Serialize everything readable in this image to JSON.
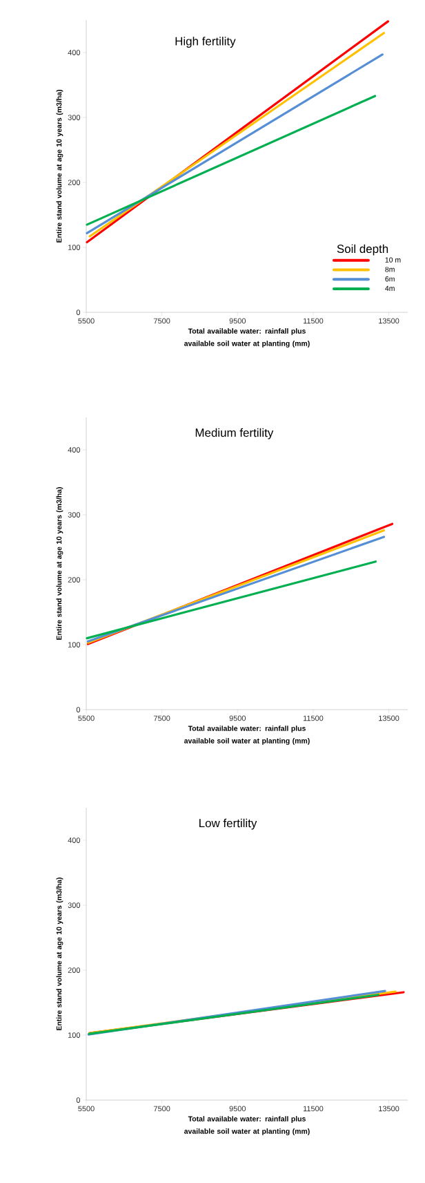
{
  "chart_data": [
    {
      "type": "line",
      "title": "High fertility",
      "xlabel": "Total available water: rainfall plus available soil water at planting (mm)",
      "ylabel": "Entire stand volume at age 10 years (m3/ha)",
      "legend_title": "Soil depth",
      "legend": "bottom right",
      "xlim": [
        5500,
        14000
      ],
      "ylim": [
        0,
        450
      ],
      "xticks": [
        5500,
        7500,
        9500,
        11500,
        13500
      ],
      "yticks": [
        0,
        100,
        200,
        300,
        400
      ],
      "line_style": "solid",
      "marker": "none",
      "grid": false,
      "series": [
        {
          "name": "10 m",
          "color": "#ff0000",
          "x": [
            5520,
            13480
          ],
          "values": [
            108,
            448
          ]
        },
        {
          "name": "8m",
          "color": "#ffc000",
          "x": [
            5595,
            13370
          ],
          "values": [
            117,
            430
          ]
        },
        {
          "name": "6m",
          "color": "#558ed5",
          "x": [
            5520,
            13330
          ],
          "values": [
            122,
            397
          ]
        },
        {
          "name": "4m",
          "color": "#00b050",
          "x": [
            5520,
            13135
          ],
          "values": [
            135,
            333
          ]
        }
      ]
    },
    {
      "type": "line",
      "title": "Medium fertility",
      "xlabel": "Total available water: rainfall plus available soil water at planting (mm)",
      "ylabel": "Entire stand volume at age 10 years (m3/ha)",
      "legend": false,
      "xlim": [
        5500,
        14000
      ],
      "ylim": [
        0,
        450
      ],
      "xticks": [
        5500,
        7500,
        9500,
        11500,
        13500
      ],
      "yticks": [
        0,
        100,
        200,
        300,
        400
      ],
      "line_style": "solid",
      "marker": "none",
      "grid": false,
      "series": [
        {
          "color": "#ff0000",
          "x": [
            5545,
            13590
          ],
          "values": [
            101,
            286
          ]
        },
        {
          "color": "#ffc000",
          "x": [
            5545,
            13370
          ],
          "values": [
            103,
            276
          ]
        },
        {
          "color": "#558ed5",
          "x": [
            5545,
            13370
          ],
          "values": [
            105,
            266
          ]
        },
        {
          "color": "#00b050",
          "x": [
            5520,
            13150
          ],
          "values": [
            110,
            228
          ]
        }
      ]
    },
    {
      "type": "line",
      "title": "Low fertility",
      "xlabel": "Total available water: rainfall plus available soil water at planting (mm)",
      "ylabel": "Entire stand volume at age 10 years (m3/ha)",
      "legend": false,
      "xlim": [
        5500,
        14000
      ],
      "ylim": [
        0,
        450
      ],
      "xticks": [
        5500,
        7500,
        9500,
        11500,
        13500
      ],
      "yticks": [
        0,
        100,
        200,
        300,
        400
      ],
      "line_style": "solid",
      "marker": "none",
      "grid": false,
      "series": [
        {
          "color": "#ff0000",
          "x": [
            5590,
            13890
          ],
          "values": [
            103,
            166
          ]
        },
        {
          "color": "#ffc000",
          "x": [
            5590,
            13675
          ],
          "values": [
            103,
            167
          ]
        },
        {
          "color": "#558ed5",
          "x": [
            5560,
            13400
          ],
          "values": [
            101,
            168
          ]
        },
        {
          "color": "#00b050",
          "x": [
            5575,
            13220
          ],
          "values": [
            102,
            162
          ]
        }
      ]
    }
  ]
}
